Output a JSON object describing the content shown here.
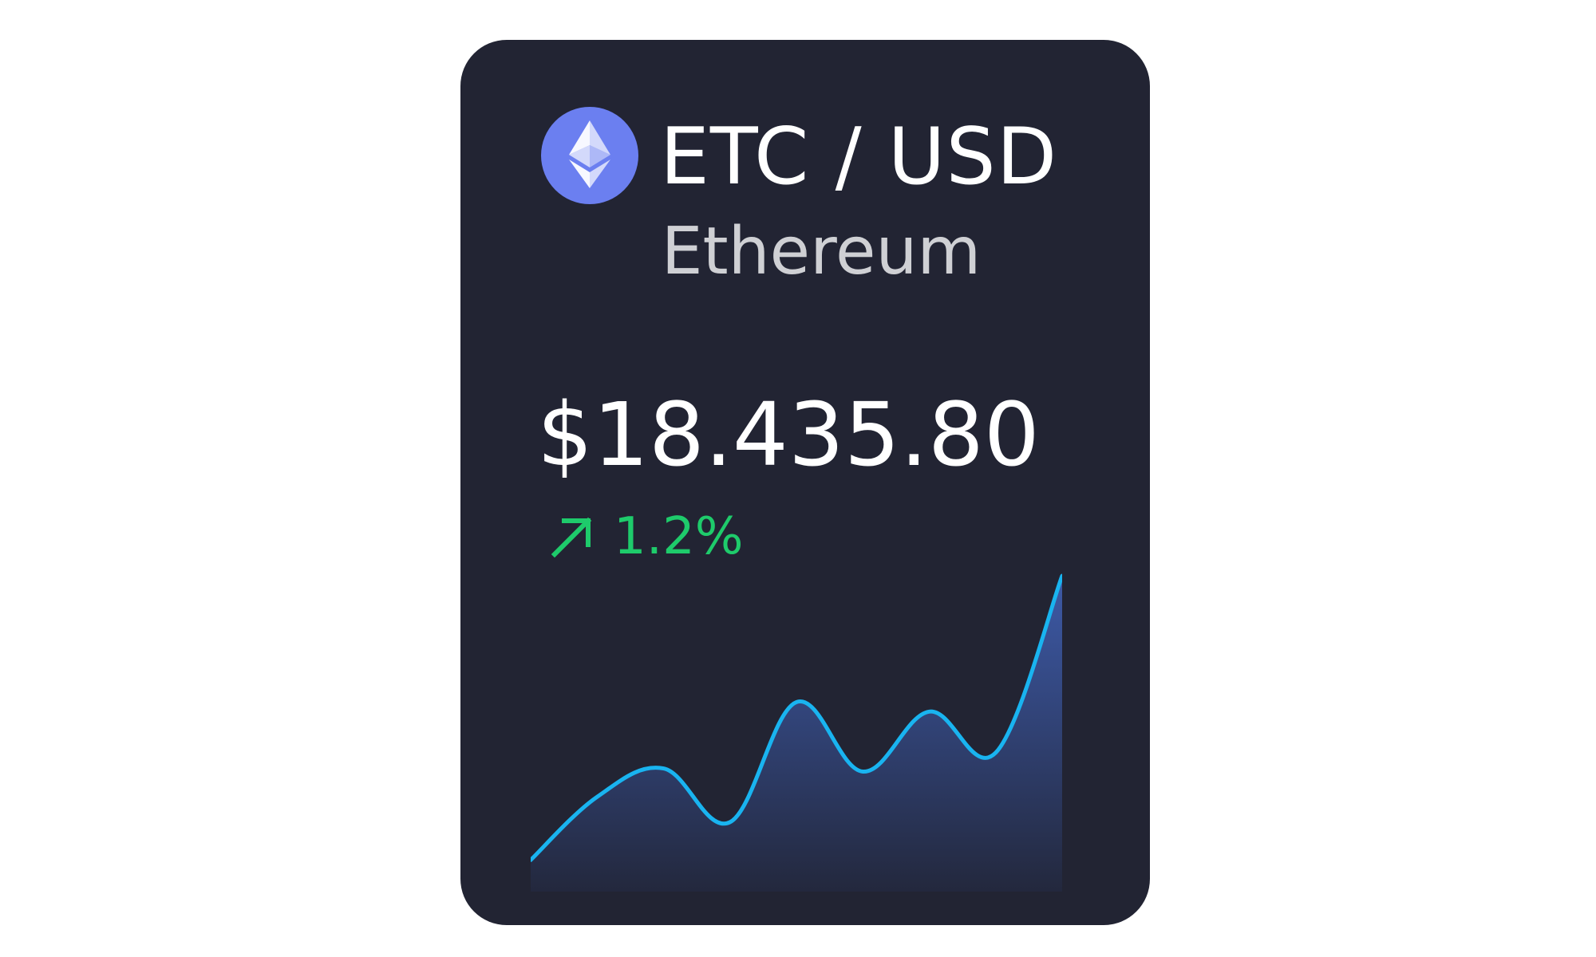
{
  "ticker": {
    "pair": "ETC / USD",
    "name": "Ethereum",
    "price": "$18.435.80",
    "change": "1.2%",
    "change_direction": "up",
    "logo_icon": "ethereum-icon",
    "arrow_icon": "arrow-up-right-icon"
  },
  "colors": {
    "card_background": "#222433",
    "logo_circle": "#6b7ff0",
    "positive": "#1ecb6b",
    "line": "#19b4f0",
    "area_top": "#3d5aa8",
    "area_bottom": "#23283d"
  },
  "chart_data": {
    "type": "area",
    "values": [
      10,
      30,
      39,
      22,
      60,
      38,
      57,
      44,
      100
    ],
    "title": "",
    "xlabel": "",
    "ylabel": ""
  }
}
